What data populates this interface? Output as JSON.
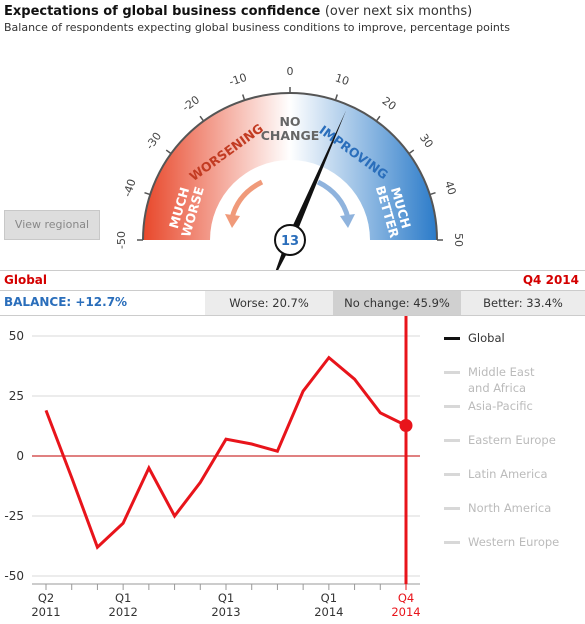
{
  "header": {
    "title": "Expectations of global business confidence",
    "title_suffix": "(over next six months)",
    "subtitle": "Balance of respondents expecting global business conditions to improve, percentage points"
  },
  "gauge": {
    "min": -50,
    "max": 50,
    "value": 13,
    "ticks": [
      "-50",
      "-40",
      "-30",
      "-20",
      "-10",
      "0",
      "10",
      "20",
      "30",
      "40",
      "50"
    ],
    "zones": {
      "much_worse": [
        "MUCH",
        "WORSE"
      ],
      "worsening": "WORSENING",
      "no_change": [
        "NO",
        "CHANGE"
      ],
      "improving": "IMPROVING",
      "much_better": [
        "MUCH",
        "BETTER"
      ]
    },
    "colors": {
      "negative": "#e8472a",
      "positive": "#2b7bc9",
      "needle": "#111111",
      "value_text": "#2a6ebb"
    }
  },
  "view_regional_button": "View regional",
  "selection": {
    "region": "Global",
    "period": "Q4 2014",
    "balance": "BALANCE: +12.7%",
    "worse": "Worse: 20.7%",
    "no_change": "No change: 45.9%",
    "better": "Better: 33.4%"
  },
  "legend": [
    "Global",
    [
      "Middle East",
      "and Africa"
    ],
    "Asia-Pacific",
    "Eastern Europe",
    "Latin America",
    "North America",
    "Western Europe"
  ],
  "chart_data": {
    "type": "line",
    "ylim": [
      -50,
      50
    ],
    "yticks": [
      "50",
      "25",
      "0",
      "-25",
      "-50"
    ],
    "x_tick_labels": [
      {
        "index": 0,
        "top": "Q2",
        "bottom": "2011"
      },
      {
        "index": 3,
        "top": "Q1",
        "bottom": "2012"
      },
      {
        "index": 7,
        "top": "Q1",
        "bottom": "2013"
      },
      {
        "index": 11,
        "top": "Q1",
        "bottom": "2014"
      },
      {
        "index": 14,
        "top": "Q4",
        "bottom": "2014"
      }
    ],
    "series": [
      {
        "name": "Global",
        "color": "#e8141b",
        "values": [
          19,
          -9,
          -38,
          -28,
          -5,
          -25,
          -11,
          7,
          5,
          2,
          27,
          41,
          32,
          18,
          12.7
        ]
      }
    ],
    "highlight_index": 14
  }
}
